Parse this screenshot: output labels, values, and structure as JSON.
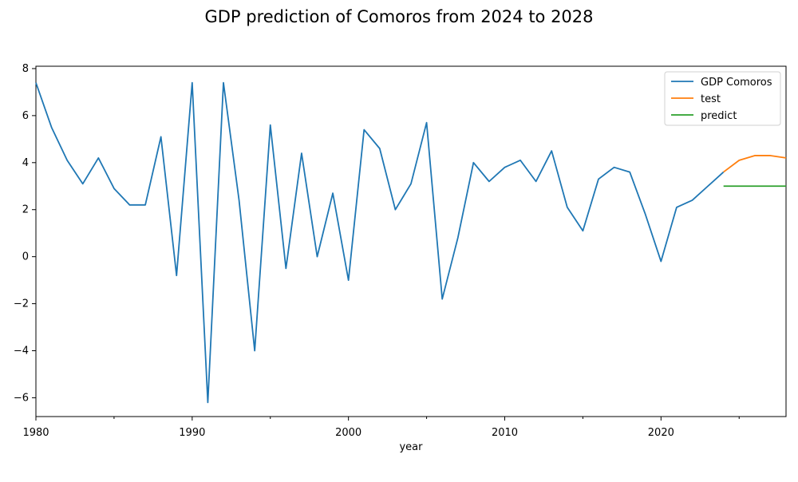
{
  "chart_data": {
    "type": "line",
    "title": "GDP prediction of Comoros from 2024 to 2028",
    "xlabel": "year",
    "ylabel": "",
    "xlim": [
      1980,
      2028
    ],
    "ylim": [
      -6.8,
      8.1
    ],
    "x_ticks": [
      1980,
      1990,
      2000,
      2010,
      2020
    ],
    "x_minor_ticks": [
      1985,
      1995,
      2005,
      2015,
      2025
    ],
    "y_ticks": [
      -6,
      -4,
      -2,
      0,
      2,
      4,
      6,
      8
    ],
    "grid": false,
    "legend_position": "top-right",
    "series": [
      {
        "name": "GDP Comoros",
        "color": "#1f77b4",
        "x": [
          1980,
          1981,
          1982,
          1983,
          1984,
          1985,
          1986,
          1987,
          1988,
          1989,
          1990,
          1991,
          1992,
          1993,
          1994,
          1995,
          1996,
          1997,
          1998,
          1999,
          2000,
          2001,
          2002,
          2003,
          2004,
          2005,
          2006,
          2007,
          2008,
          2009,
          2010,
          2011,
          2012,
          2013,
          2014,
          2015,
          2016,
          2017,
          2018,
          2019,
          2020,
          2021,
          2022,
          2023,
          2024
        ],
        "values": [
          7.4,
          5.5,
          4.1,
          3.1,
          4.2,
          2.9,
          2.2,
          2.2,
          5.1,
          -0.8,
          7.4,
          -6.2,
          7.4,
          2.4,
          -4.0,
          5.6,
          -0.5,
          4.4,
          0.0,
          2.7,
          -1.0,
          5.4,
          4.6,
          2.0,
          3.1,
          5.7,
          -1.8,
          0.8,
          4.0,
          3.2,
          3.8,
          4.1,
          3.2,
          4.5,
          2.1,
          1.1,
          3.3,
          3.8,
          3.6,
          1.8,
          -0.2,
          2.1,
          2.4,
          3.0,
          3.6
        ]
      },
      {
        "name": "test",
        "color": "#ff7f0e",
        "x": [
          2024,
          2025,
          2026,
          2027,
          2028
        ],
        "values": [
          3.6,
          4.1,
          4.3,
          4.3,
          4.2
        ]
      },
      {
        "name": "predict",
        "color": "#2ca02c",
        "x": [
          2024,
          2025,
          2026,
          2027,
          2028
        ],
        "values": [
          3.0,
          3.0,
          3.0,
          3.0,
          3.0
        ]
      }
    ]
  }
}
